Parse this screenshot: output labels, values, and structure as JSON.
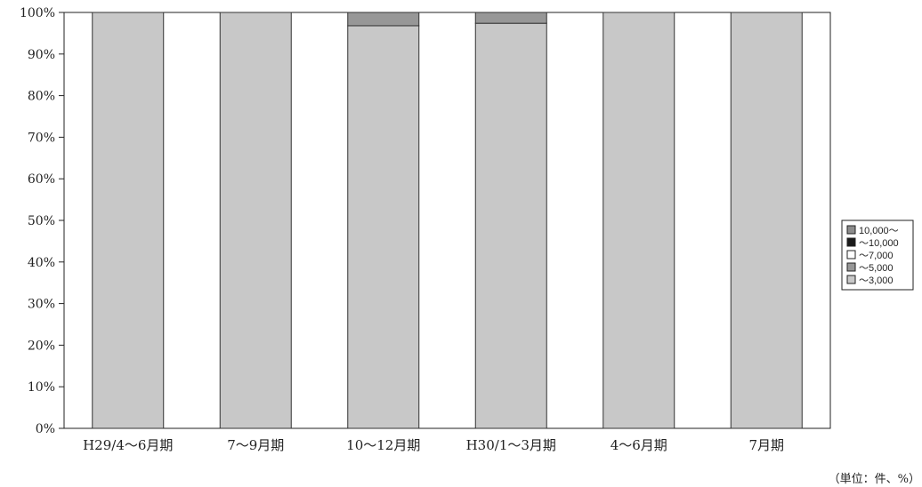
{
  "chart_data": {
    "type": "bar",
    "stacked": true,
    "categories": [
      "H29/4～6月期",
      "7～9月期",
      "10～12月期",
      "H30/1～3月期",
      "4～6月期",
      "7月期"
    ],
    "yticks": [
      "0%",
      "10%",
      "20%",
      "30%",
      "40%",
      "50%",
      "60%",
      "70%",
      "80%",
      "90%",
      "100%"
    ],
    "ylim": [
      0,
      100
    ],
    "series": [
      {
        "name": "～3,000",
        "color": "#c8c8c8",
        "values": [
          100,
          100,
          96.8,
          97.4,
          100,
          100
        ]
      },
      {
        "name": "～5,000",
        "color": "#979797",
        "values": [
          0,
          0,
          3.2,
          2.6,
          0,
          0
        ]
      },
      {
        "name": "～7,000",
        "color": "#ffffff",
        "values": [
          0,
          0,
          0,
          0,
          0,
          0
        ]
      },
      {
        "name": "～10,000",
        "color": "#1a1a1a",
        "values": [
          0,
          0,
          0,
          0,
          0,
          0
        ]
      },
      {
        "name": "10,000～",
        "color": "#8c8c8c",
        "values": [
          0,
          0,
          0,
          0,
          0,
          0
        ]
      }
    ],
    "legend_order": [
      "10,000～",
      "～10,000",
      "～7,000",
      "～5,000",
      "～3,000"
    ],
    "legend_position": "right",
    "grid": false,
    "unit_note": "（単位：件、%）"
  }
}
